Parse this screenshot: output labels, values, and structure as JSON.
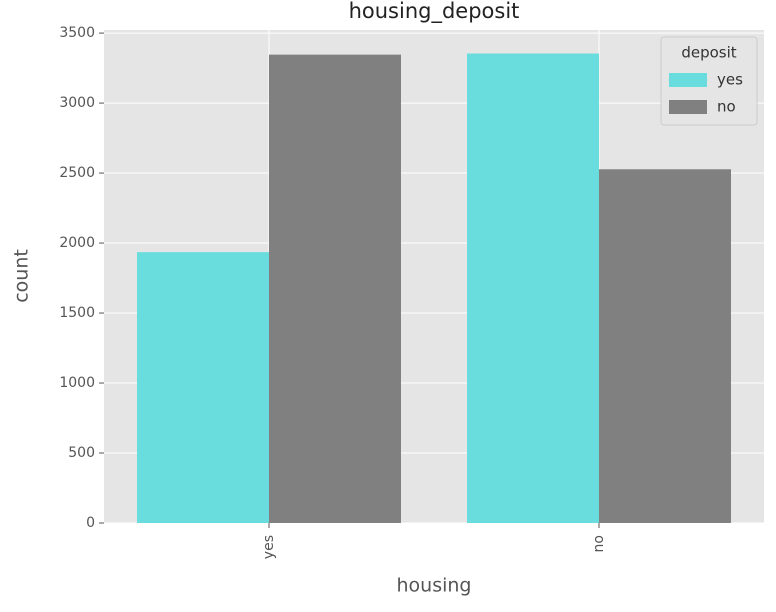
{
  "chart_data": {
    "type": "bar",
    "title": "housing_deposit",
    "x_label": "housing",
    "y_label": "count",
    "categories": [
      "yes",
      "no"
    ],
    "series": [
      {
        "name": "yes",
        "color": "#69dcde",
        "values": [
          1935,
          3354
        ]
      },
      {
        "name": "no",
        "color": "#808080",
        "values": [
          3346,
          2527
        ]
      }
    ],
    "legend_title": "deposit",
    "legend": "upper right",
    "ylim": [
      0,
      3522
    ],
    "yticks": [
      0,
      500,
      1000,
      1500,
      2000,
      2500,
      3000,
      3500
    ],
    "grid": true
  }
}
